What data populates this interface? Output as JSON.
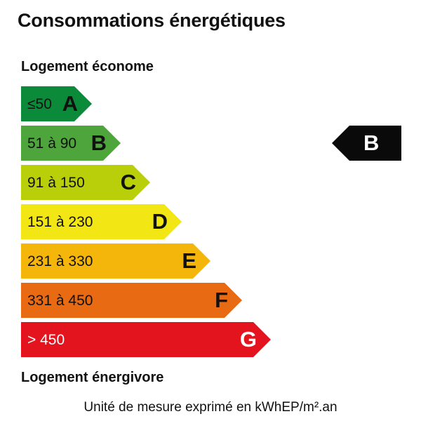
{
  "title": "Consommations énergétiques",
  "label_top": "Logement économe",
  "label_bottom": "Logement énergivore",
  "unit_note": "Unité de mesure exprimé en kWhEP/m².an",
  "classes": [
    {
      "letter": "A",
      "range": "≤50",
      "color": "#0b8b3a"
    },
    {
      "letter": "B",
      "range": "51 à 90",
      "color": "#4da53b"
    },
    {
      "letter": "C",
      "range": "91 à 150",
      "color": "#b8cf0a"
    },
    {
      "letter": "D",
      "range": "151 à 230",
      "color": "#f2e614"
    },
    {
      "letter": "E",
      "range": "231 à 330",
      "color": "#f5b60b"
    },
    {
      "letter": "F",
      "range": "331 à 450",
      "color": "#e86a12"
    },
    {
      "letter": "G",
      "range": "> 450",
      "color": "#e3141e"
    }
  ],
  "current_rating": {
    "letter": "B",
    "color": "#0a0a0a"
  }
}
